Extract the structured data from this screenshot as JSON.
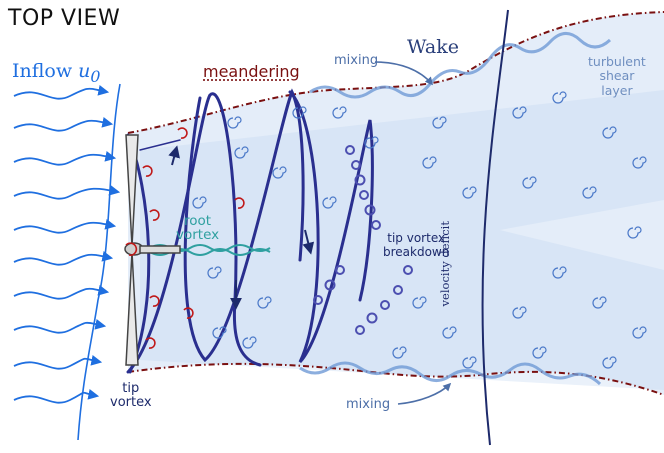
{
  "title": "TOP VIEW",
  "inflow": {
    "label": "Inflow",
    "symbol": "u",
    "subscript": "0"
  },
  "labels": {
    "meandering": "meandering",
    "wake": "Wake",
    "mixing_top": "mixing",
    "mixing_bottom": "mixing",
    "turbulent_shear_layer": "turbulent\nshear\nlayer",
    "root_vortex": "root\nvortex",
    "tip_vortex_breakdown": "tip vortex\nbreakdown",
    "tip_vortex": "tip\nvortex",
    "velocity_deficit": "velocity deficit"
  },
  "colors": {
    "inflow": "#1f6fe0",
    "helix": "#2a2f8f",
    "meander_line": "#7a1010",
    "wake_fill": "#c9dcf2",
    "root_vortex": "#2fa0a0",
    "eddy": "#4a78c8"
  }
}
